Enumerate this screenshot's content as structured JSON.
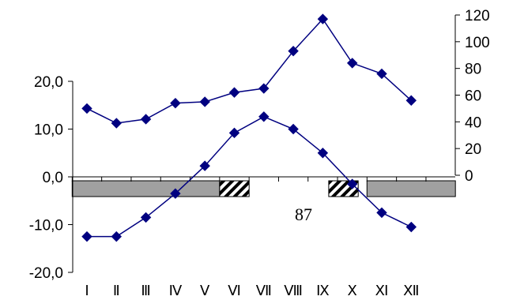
{
  "chart_data": {
    "type": "line",
    "categories": [
      "Ⅰ",
      "Ⅱ",
      "Ⅲ",
      "Ⅳ",
      "Ⅴ",
      "Ⅵ",
      "Ⅶ",
      "Ⅷ",
      "Ⅸ",
      "Ⅹ",
      "Ⅺ",
      "Ⅻ"
    ],
    "left_axis": {
      "ylim": [
        -20,
        20
      ],
      "ticks": [
        -20,
        -10,
        0,
        10,
        20
      ],
      "tick_labels": [
        "-20,0",
        "-10,0",
        "0,0",
        "10,0",
        "20,0"
      ]
    },
    "right_axis": {
      "ylim": [
        0,
        120
      ],
      "ticks": [
        0,
        20,
        40,
        60,
        80,
        100,
        120
      ],
      "tick_labels": [
        "0",
        "20",
        "40",
        "60",
        "80",
        "100",
        "120"
      ]
    },
    "series": [
      {
        "axis": "left",
        "values": [
          -12.5,
          -12.5,
          -8.5,
          -3.5,
          2.3,
          9.2,
          12.6,
          10.0,
          5.0,
          -1.5,
          -7.5,
          -10.5
        ]
      },
      {
        "axis": "right",
        "values": [
          50,
          39,
          42,
          54,
          55,
          62,
          65,
          93,
          117,
          84,
          76,
          56
        ]
      }
    ],
    "periods": [
      {
        "kind": "solid",
        "start": 0.5,
        "end": 5.5,
        "label": ""
      },
      {
        "kind": "hatched",
        "start": 5.5,
        "end": 6.5,
        "label": ""
      },
      {
        "kind": "hatched",
        "start": 9.2,
        "end": 10.2,
        "label": ""
      },
      {
        "kind": "solid",
        "start": 10.5,
        "end": 13.5,
        "label": ""
      }
    ],
    "annotation": "87",
    "colors": {
      "series": "#000080",
      "period_fill": "#a0a0a0",
      "axis": "#000000"
    },
    "grid": false,
    "legend": "none"
  }
}
